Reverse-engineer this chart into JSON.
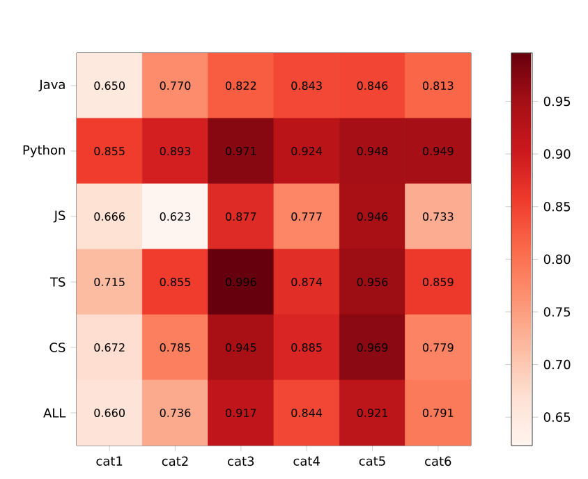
{
  "chart_data": {
    "type": "heatmap",
    "categories": [
      "cat1",
      "cat2",
      "cat3",
      "cat4",
      "cat5",
      "cat6"
    ],
    "y_categories": [
      "Java",
      "Python",
      "JS",
      "TS",
      "CS",
      "ALL"
    ],
    "cells": [
      [
        0.65,
        0.77,
        0.822,
        0.843,
        0.846,
        0.813
      ],
      [
        0.855,
        0.893,
        0.971,
        0.924,
        0.948,
        0.949
      ],
      [
        0.666,
        0.623,
        0.877,
        0.777,
        0.946,
        0.733
      ],
      [
        0.715,
        0.855,
        0.996,
        0.874,
        0.956,
        0.859
      ],
      [
        0.672,
        0.785,
        0.945,
        0.885,
        0.969,
        0.779
      ],
      [
        0.66,
        0.736,
        0.917,
        0.844,
        0.921,
        0.791
      ]
    ],
    "cell_labels": [
      [
        "0.650",
        "0.770",
        "0.822",
        "0.843",
        "0.846",
        "0.813"
      ],
      [
        "0.855",
        "0.893",
        "0.971",
        "0.924",
        "0.948",
        "0.949"
      ],
      [
        "0.666",
        "0.623",
        "0.877",
        "0.777",
        "0.946",
        "0.733"
      ],
      [
        "0.715",
        "0.855",
        "0.996",
        "0.874",
        "0.956",
        "0.859"
      ],
      [
        "0.672",
        "0.785",
        "0.945",
        "0.885",
        "0.969",
        "0.779"
      ],
      [
        "0.660",
        "0.736",
        "0.917",
        "0.844",
        "0.921",
        "0.791"
      ]
    ],
    "clim": [
      0.623,
      0.996
    ],
    "cticks": [
      {
        "value": 0.65,
        "label": "0.65"
      },
      {
        "value": 0.7,
        "label": "0.70"
      },
      {
        "value": 0.75,
        "label": "0.75"
      },
      {
        "value": 0.8,
        "label": "0.80"
      },
      {
        "value": 0.85,
        "label": "0.85"
      },
      {
        "value": 0.9,
        "label": "0.90"
      },
      {
        "value": 0.95,
        "label": "0.95"
      }
    ]
  }
}
